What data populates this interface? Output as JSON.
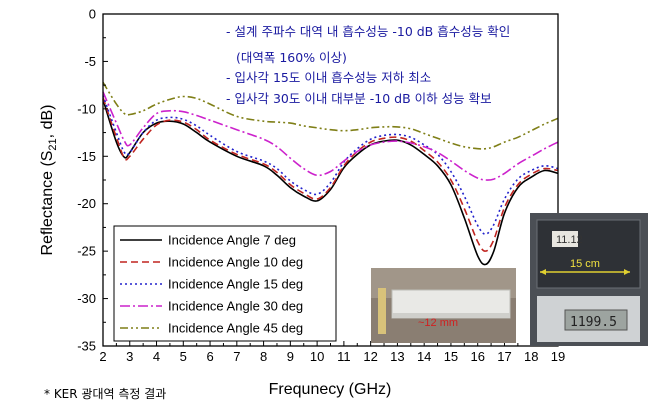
{
  "chart_data": {
    "type": "line",
    "xlabel": "Frequnecy (GHz)",
    "ylabel_main": "Reflectance (S",
    "ylabel_sub": "21",
    "ylabel_end": ", dB)",
    "xlim": [
      2,
      19
    ],
    "ylim": [
      -35,
      0
    ],
    "xticks": [
      2,
      3,
      4,
      5,
      6,
      7,
      8,
      9,
      10,
      11,
      12,
      13,
      14,
      15,
      16,
      17,
      18,
      19
    ],
    "yticks": [
      0,
      -5,
      -10,
      -15,
      -20,
      -25,
      -30,
      -35
    ],
    "grid": false,
    "legend_position": "lower-left",
    "x": [
      2,
      2.5,
      2.8,
      3,
      3.5,
      4,
      4.5,
      5,
      5.5,
      6,
      7,
      8,
      8.5,
      9,
      9.5,
      10,
      10.5,
      11,
      11.5,
      12,
      12.5,
      13,
      13.5,
      14,
      14.5,
      15,
      15.5,
      16,
      16.3,
      16.6,
      17,
      17.5,
      18,
      18.5,
      19
    ],
    "series": [
      {
        "name": "Incidence Angle 7 deg",
        "color": "#000000",
        "dash": "",
        "values": [
          -9.0,
          -13.5,
          -15.1,
          -14.6,
          -12.5,
          -11.5,
          -11.3,
          -11.6,
          -12.5,
          -13.5,
          -15.0,
          -16.0,
          -17.0,
          -18.3,
          -19.2,
          -19.7,
          -18.5,
          -16.2,
          -14.8,
          -13.8,
          -13.4,
          -13.3,
          -13.8,
          -14.8,
          -16.0,
          -18.0,
          -21.5,
          -25.5,
          -26.4,
          -25.0,
          -21.0,
          -18.3,
          -17.2,
          -16.5,
          -16.8
        ]
      },
      {
        "name": "Incidence Angle 10 deg",
        "color": "#c0241f",
        "dash": "7,4",
        "values": [
          -8.8,
          -13.0,
          -15.2,
          -15.0,
          -13.2,
          -11.7,
          -11.2,
          -11.4,
          -12.2,
          -13.3,
          -14.8,
          -15.8,
          -16.7,
          -18.0,
          -18.9,
          -19.5,
          -18.3,
          -16.0,
          -14.5,
          -13.5,
          -13.1,
          -13.0,
          -13.4,
          -14.4,
          -15.6,
          -17.5,
          -20.5,
          -24.0,
          -25.0,
          -23.8,
          -20.4,
          -18.0,
          -16.9,
          -16.3,
          -16.5
        ]
      },
      {
        "name": "Incidence Angle 15 deg",
        "color": "#2222cc",
        "dash": "2,3",
        "values": [
          -8.6,
          -12.5,
          -14.6,
          -14.6,
          -12.5,
          -11.2,
          -10.9,
          -11.1,
          -11.8,
          -12.8,
          -14.5,
          -15.5,
          -16.3,
          -17.6,
          -18.5,
          -19.0,
          -17.8,
          -15.6,
          -14.2,
          -13.2,
          -12.8,
          -12.7,
          -13.0,
          -13.8,
          -14.8,
          -16.6,
          -19.2,
          -22.3,
          -23.2,
          -22.2,
          -19.5,
          -17.4,
          -16.5,
          -16.0,
          -16.3
        ]
      },
      {
        "name": "Incidence Angle 30 deg",
        "color": "#cc22cc",
        "dash": "10,3,2,3",
        "values": [
          -8.2,
          -11.5,
          -13.4,
          -13.8,
          -12.0,
          -10.5,
          -10.2,
          -10.3,
          -10.7,
          -11.2,
          -12.2,
          -13.2,
          -14.0,
          -15.2,
          -16.3,
          -17.0,
          -16.6,
          -15.5,
          -14.5,
          -13.8,
          -13.5,
          -13.4,
          -13.6,
          -14.0,
          -14.6,
          -15.5,
          -16.5,
          -17.3,
          -17.5,
          -17.4,
          -16.8,
          -15.8,
          -15.0,
          -14.2,
          -13.5
        ]
      },
      {
        "name": "Incidence Angle 45 deg",
        "color": "#7f7f17",
        "dash": "8,3,2,3,2,3",
        "values": [
          -7.2,
          -9.5,
          -10.5,
          -10.6,
          -10.2,
          -9.5,
          -9.0,
          -8.7,
          -8.9,
          -9.5,
          -10.8,
          -11.3,
          -11.4,
          -11.5,
          -11.8,
          -12.0,
          -12.2,
          -12.3,
          -12.2,
          -12.0,
          -11.9,
          -11.9,
          -12.1,
          -12.6,
          -13.1,
          -13.6,
          -14.0,
          -14.2,
          -14.2,
          -14.0,
          -13.5,
          -13.0,
          -12.3,
          -11.6,
          -11.0
        ]
      }
    ]
  },
  "annotations": [
    "- 설계 주파수 대역 내 흡수성능 -10 dB 흡수성능 확인",
    "(대역폭 160% 이상)",
    "- 입사각 15도 이내 흡수성능 저하 최소",
    "- 입사각 30도 이내 대부분 -10 dB 이하 성능 확보"
  ],
  "footnote": "* KER 광대역 측정 결과",
  "photos": {
    "sample_thickness": "~12 mm",
    "sample_width": "15 cm",
    "scale_reading": "1199.5",
    "card_label": "11.12"
  }
}
